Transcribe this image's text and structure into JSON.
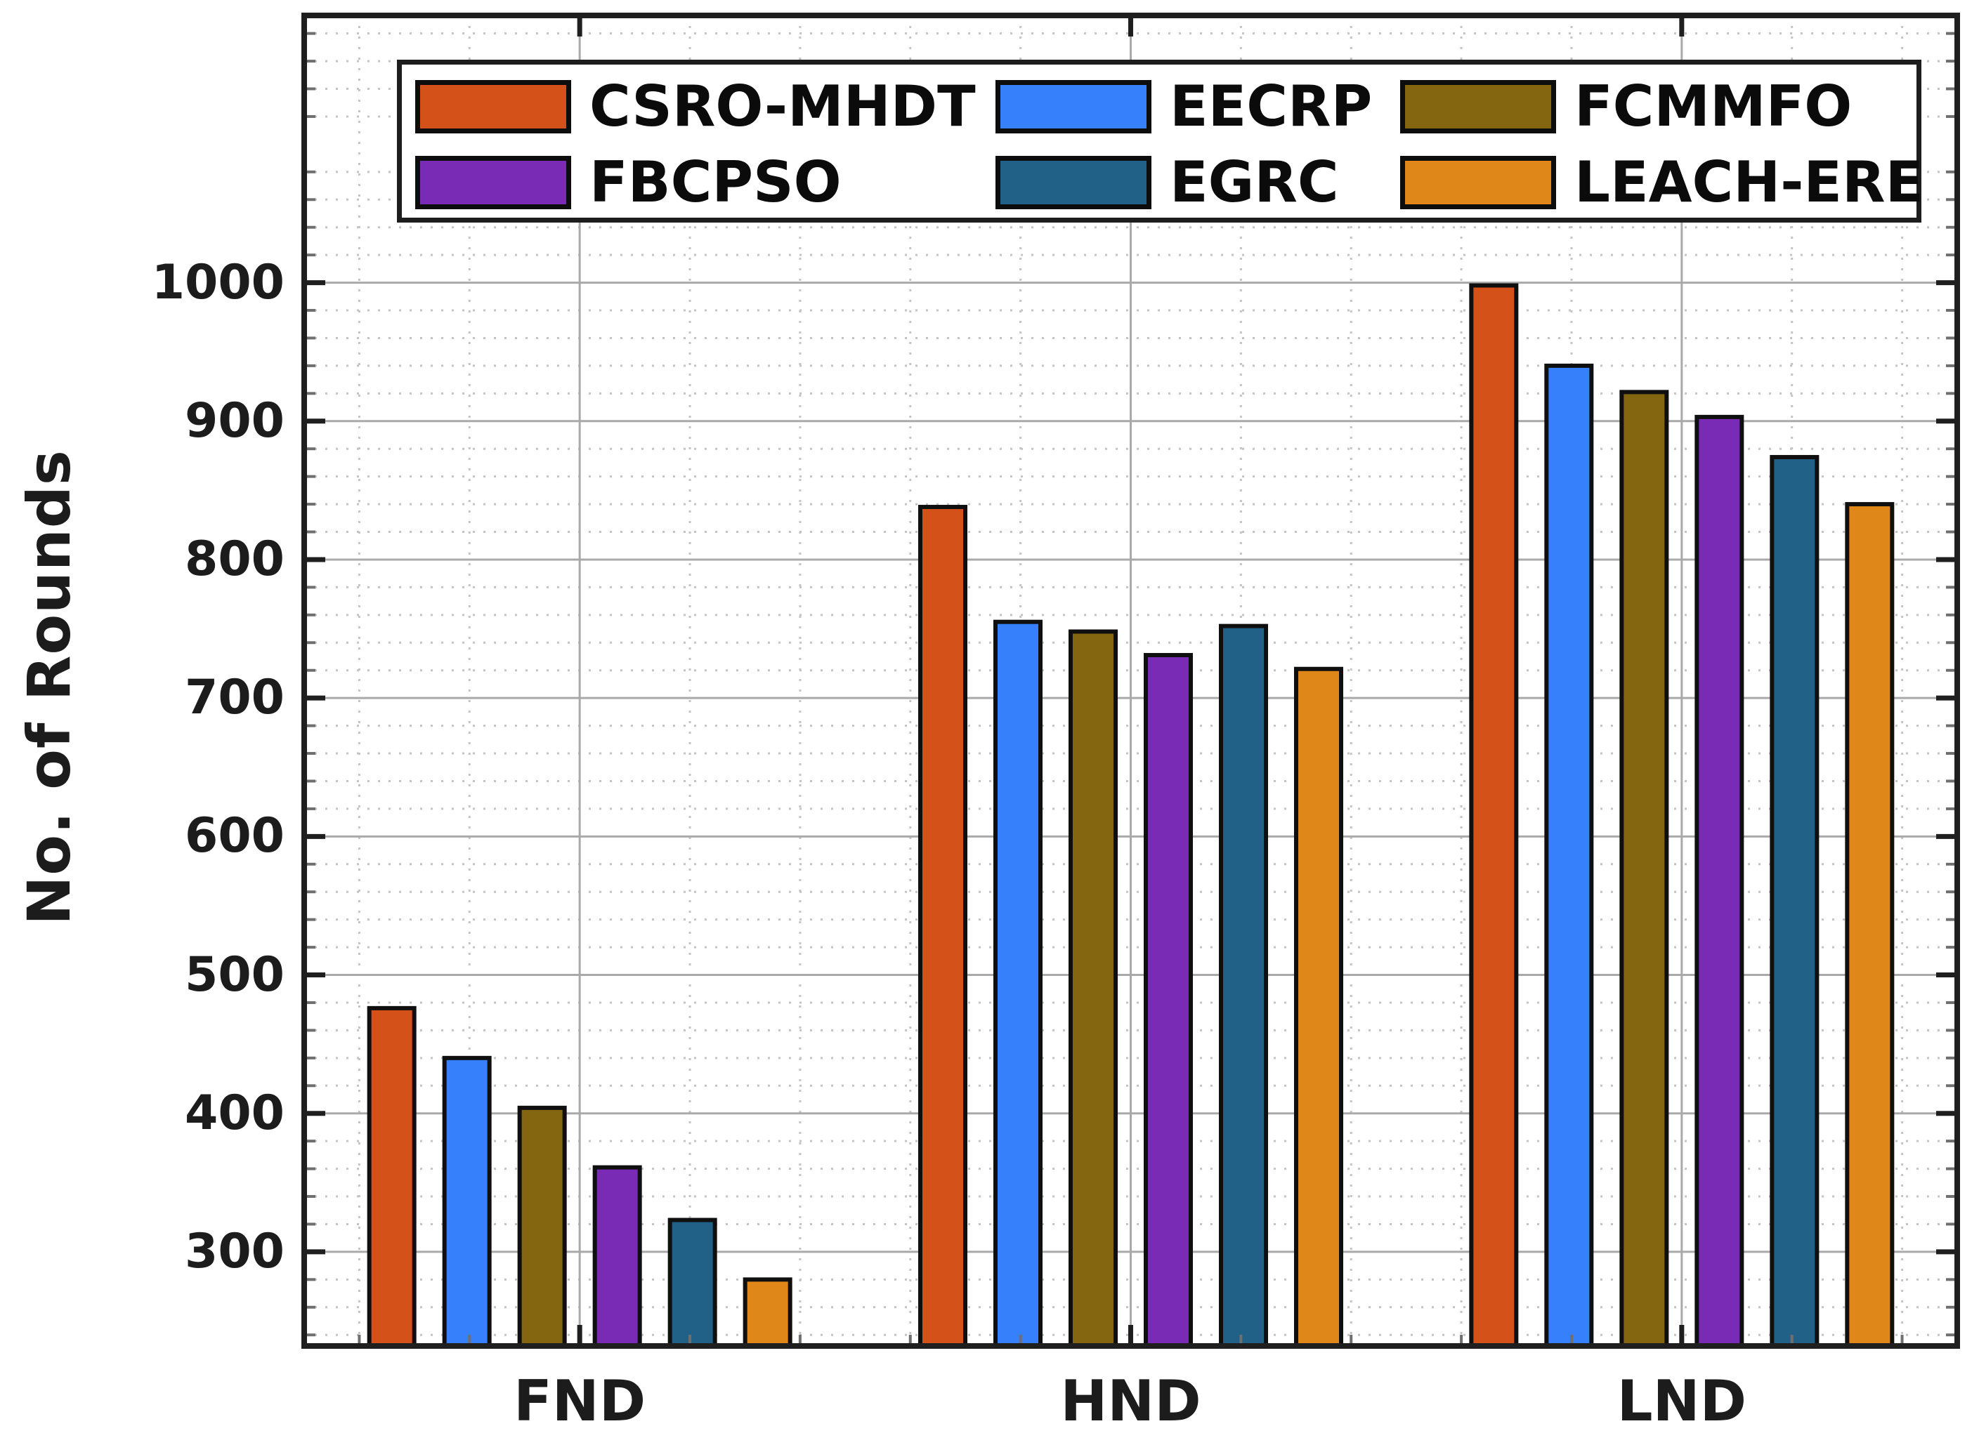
{
  "chart_data": {
    "type": "bar",
    "title": "",
    "xlabel": "",
    "ylabel": "No. of Rounds",
    "categories": [
      "FND",
      "HND",
      "LND"
    ],
    "series": [
      {
        "name": "CSRO-MHDT",
        "color": "#d4521a",
        "values": [
          476,
          838,
          998
        ]
      },
      {
        "name": "EECRP",
        "color": "#3780fc",
        "values": [
          440,
          755,
          940
        ]
      },
      {
        "name": "FCMMFO",
        "color": "#846611",
        "values": [
          404,
          748,
          921
        ]
      },
      {
        "name": "FBCPSO",
        "color": "#7a2bb5",
        "values": [
          361,
          731,
          903
        ]
      },
      {
        "name": "EGRC",
        "color": "#216087",
        "values": [
          323,
          752,
          874
        ]
      },
      {
        "name": "LEACH-ERE",
        "color": "#e0871a",
        "values": [
          280,
          721,
          840
        ]
      }
    ],
    "ylim": [
      232,
      1193
    ],
    "yticks": [
      300,
      400,
      500,
      600,
      700,
      800,
      900,
      1000
    ],
    "minor_y_step": 20,
    "grid": true,
    "legend_position": "top-inside",
    "legend_rows": [
      [
        "CSRO-MHDT",
        "EECRP",
        "FCMMFO"
      ],
      [
        "FBCPSO",
        "EGRC",
        "LEACH-ERE"
      ]
    ]
  },
  "style_colors": {
    "axis_border": "#1f1f1f",
    "major_grid": "#a9a9a9",
    "minor_grid": "#c4c4c4",
    "bar_edge": "#0f0f0f",
    "text": "#1c1c1c"
  }
}
